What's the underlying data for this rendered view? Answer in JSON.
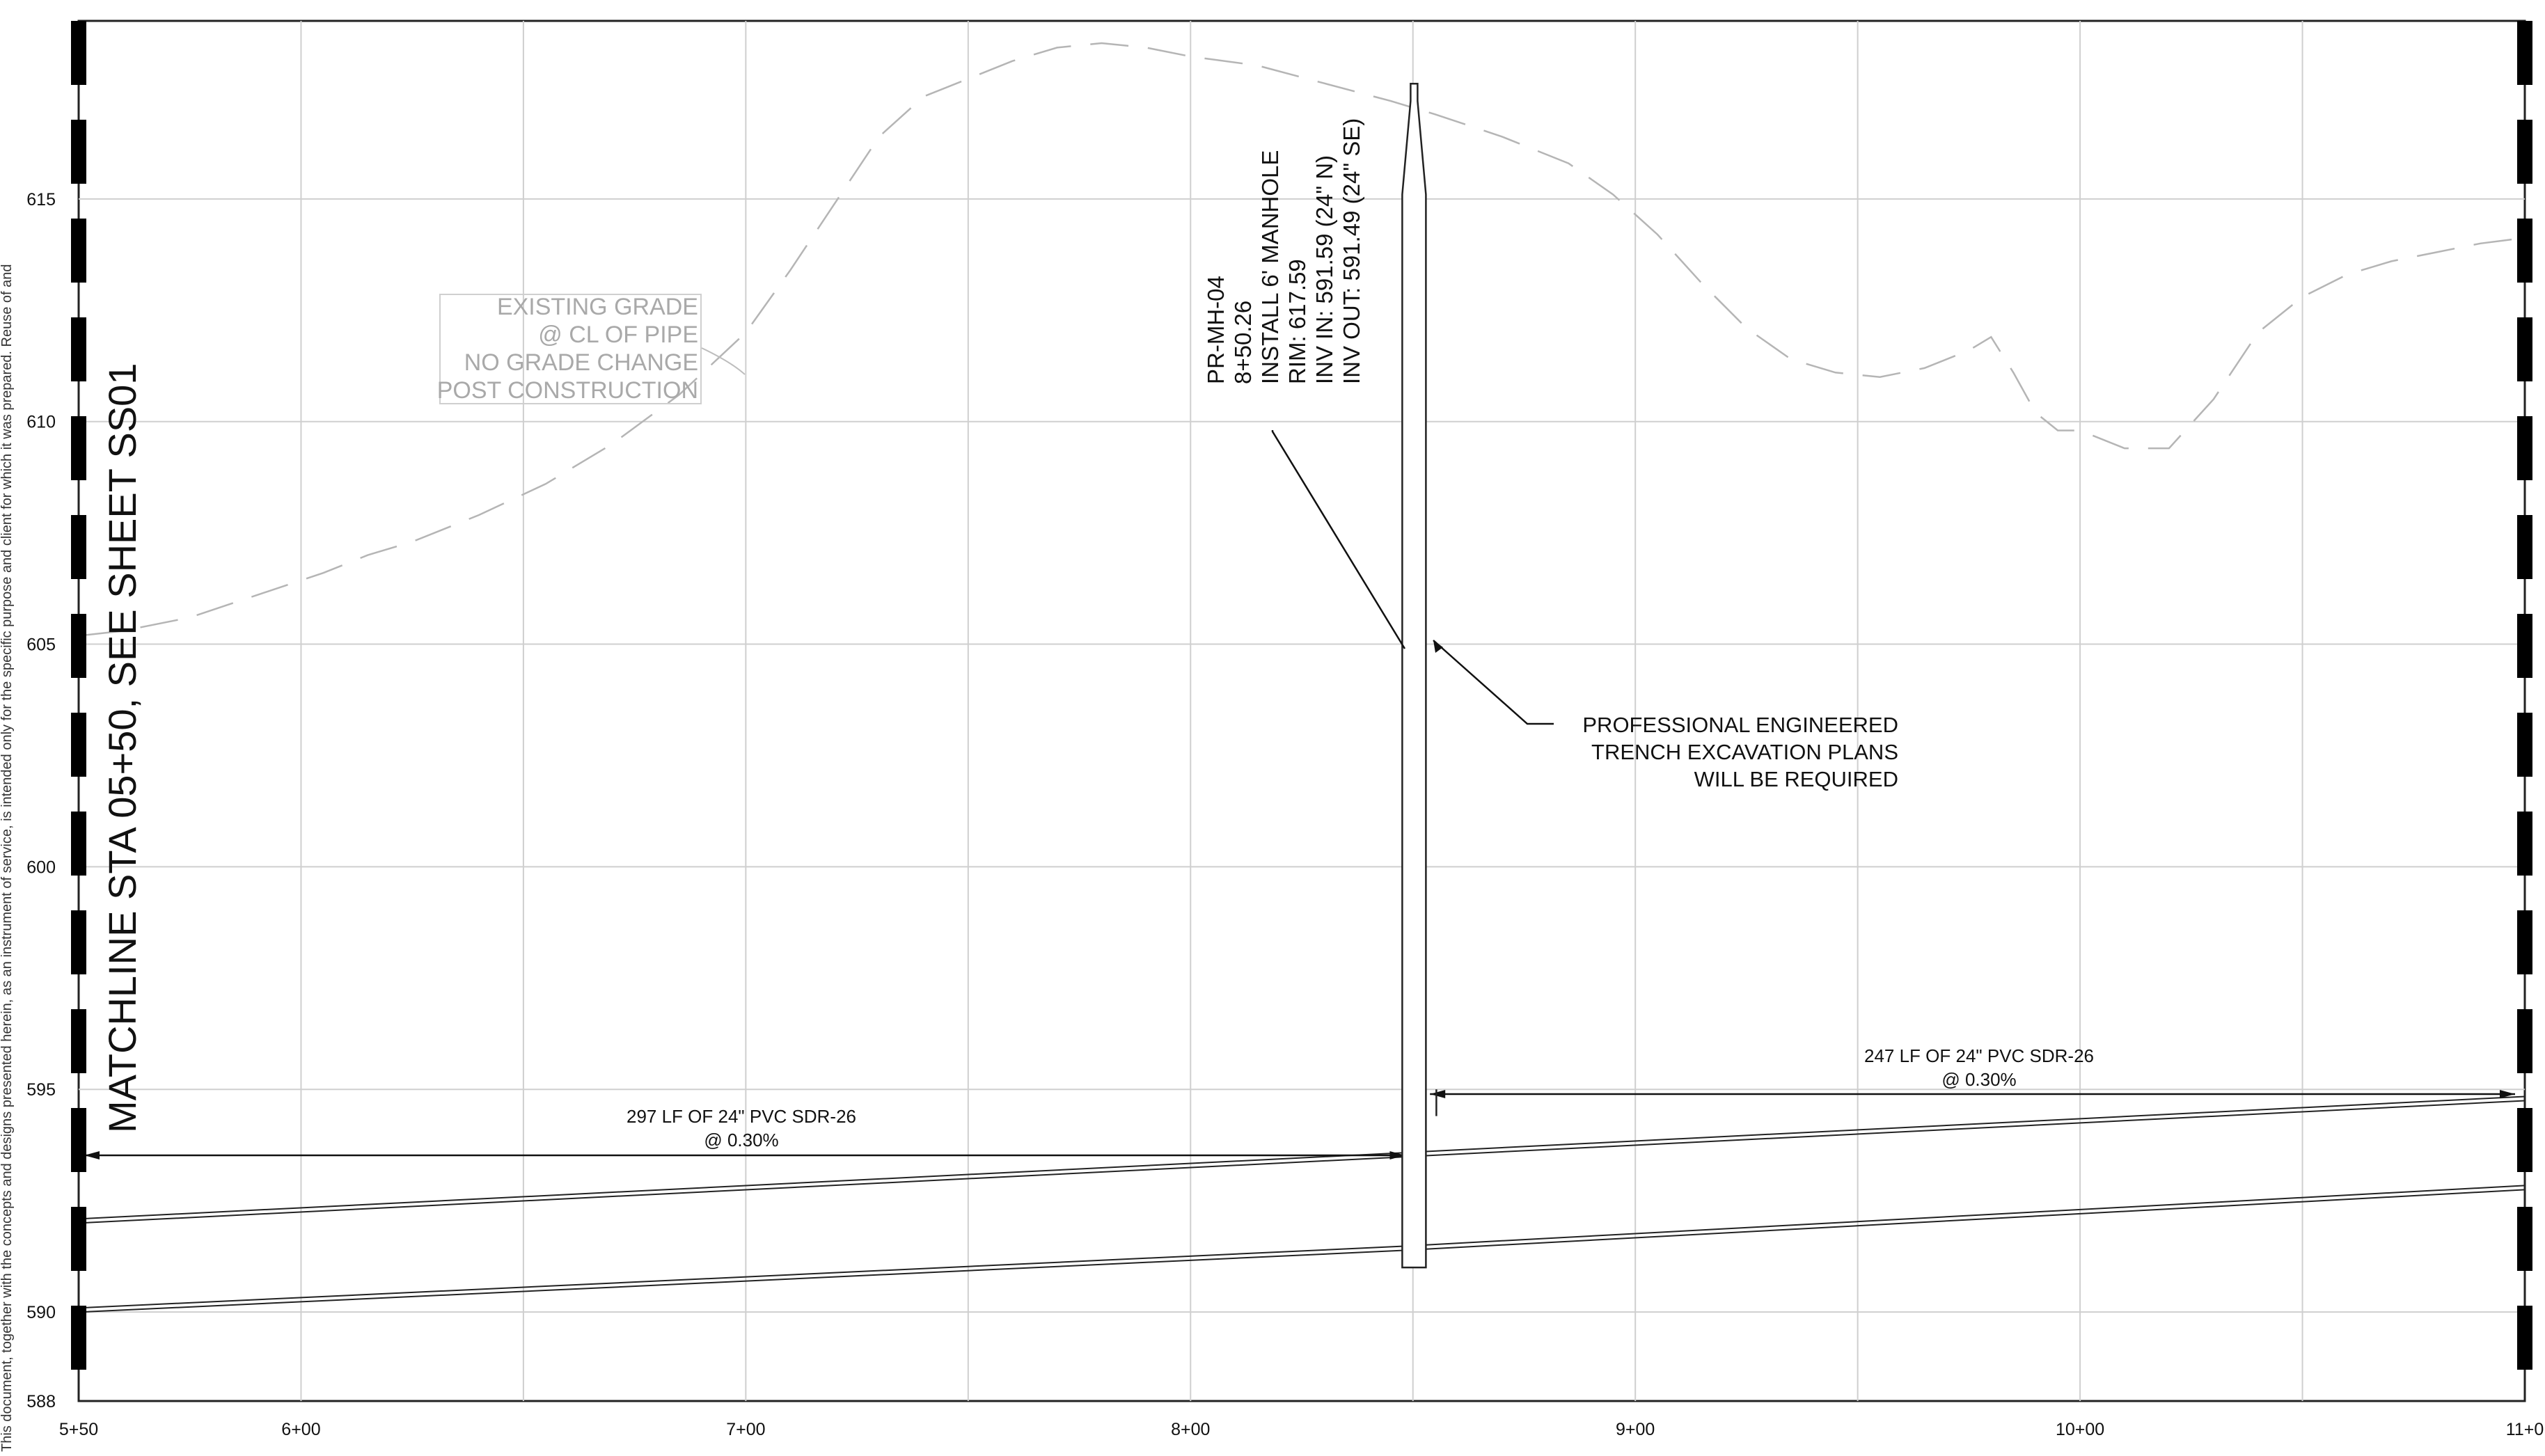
{
  "disclaimer": "This document, together with the concepts and designs presented herein, as an instrument of service, is intended only for the specific purpose and client for which it was prepared. Reuse of and",
  "matchline": "MATCHLINE STA 05+50, SEE SHEET SS01",
  "existing_grade_note": [
    "EXISTING GRADE",
    "@ CL OF PIPE",
    "NO GRADE CHANGE",
    "POST CONSTRUCTION"
  ],
  "manhole_note": [
    "PR-MH-04",
    "8+50.26",
    "INSTALL 6' MANHOLE",
    "RIM: 617.59",
    "INV IN: 591.59 (24\" N)",
    "INV OUT: 591.49 (24\" SE)"
  ],
  "trench_note": [
    "PROFESSIONAL ENGINEERED",
    "TRENCH EXCAVATION PLANS",
    "WILL BE REQUIRED"
  ],
  "pipe_left_note": [
    "297 LF OF 24\" PVC SDR-26",
    "@ 0.30%"
  ],
  "pipe_right_note": [
    "247 LF OF 24\" PVC SDR-26",
    "@ 0.30%"
  ],
  "chart_data": {
    "type": "line",
    "title": "",
    "xlabel": "",
    "ylabel": "",
    "xlim": [
      550,
      1100
    ],
    "ylim": [
      588,
      619
    ],
    "grid": true,
    "x_ticks": [
      {
        "value": 550,
        "label": "5+50"
      },
      {
        "value": 600,
        "label": "6+00"
      },
      {
        "value": 700,
        "label": "7+00"
      },
      {
        "value": 800,
        "label": "8+00"
      },
      {
        "value": 900,
        "label": "9+00"
      },
      {
        "value": 1000,
        "label": "10+00"
      },
      {
        "value": 1100,
        "label": "11+0"
      }
    ],
    "y_ticks": [
      {
        "value": 588,
        "label": "588"
      },
      {
        "value": 590,
        "label": "590"
      },
      {
        "value": 595,
        "label": "595"
      },
      {
        "value": 600,
        "label": "600"
      },
      {
        "value": 605,
        "label": "605"
      },
      {
        "value": 610,
        "label": "610"
      },
      {
        "value": 615,
        "label": "615"
      }
    ],
    "existing_grade": {
      "x": [
        551,
        560,
        575,
        590,
        605,
        615,
        625,
        640,
        655,
        670,
        685,
        700,
        710,
        720,
        730,
        740,
        750,
        760,
        770,
        780,
        790,
        800,
        815,
        830,
        845,
        855,
        870,
        885,
        895,
        905,
        915,
        925,
        935,
        945,
        955,
        965,
        975,
        980,
        985,
        990,
        995,
        1000,
        1010,
        1020,
        1030,
        1040,
        1050,
        1060,
        1070,
        1080,
        1090,
        1098
      ],
      "y": [
        605.2,
        605.3,
        605.6,
        606.1,
        606.6,
        607.0,
        607.3,
        607.9,
        608.6,
        609.5,
        610.6,
        612.0,
        613.4,
        614.9,
        616.4,
        617.3,
        617.7,
        618.1,
        618.4,
        618.5,
        618.4,
        618.2,
        618.0,
        617.6,
        617.2,
        616.9,
        616.4,
        615.8,
        615.1,
        614.2,
        613.1,
        612.1,
        611.4,
        611.1,
        611.0,
        611.2,
        611.6,
        611.9,
        611.1,
        610.2,
        609.8,
        609.8,
        609.4,
        609.4,
        610.5,
        612.0,
        612.8,
        613.3,
        613.6,
        613.8,
        614.0,
        614.1
      ]
    },
    "pipe": {
      "x": [
        550,
        850.26,
        1100
      ],
      "crown": [
        592.09,
        593.59,
        594.84
      ],
      "invert": [
        590.09,
        591.49,
        592.84
      ],
      "slope_pct": 0.3
    },
    "manhole": {
      "station": 850.26,
      "rim": 617.59,
      "inv_in": 591.59,
      "inv_out": 591.49,
      "bottom": 591.0
    },
    "pipe_runs": [
      {
        "length_lf": 297,
        "from": 550,
        "to": 847.3,
        "slope_pct": 0.3
      },
      {
        "length_lf": 247,
        "from": 853.2,
        "to": 1100,
        "slope_pct": 0.3
      }
    ]
  }
}
